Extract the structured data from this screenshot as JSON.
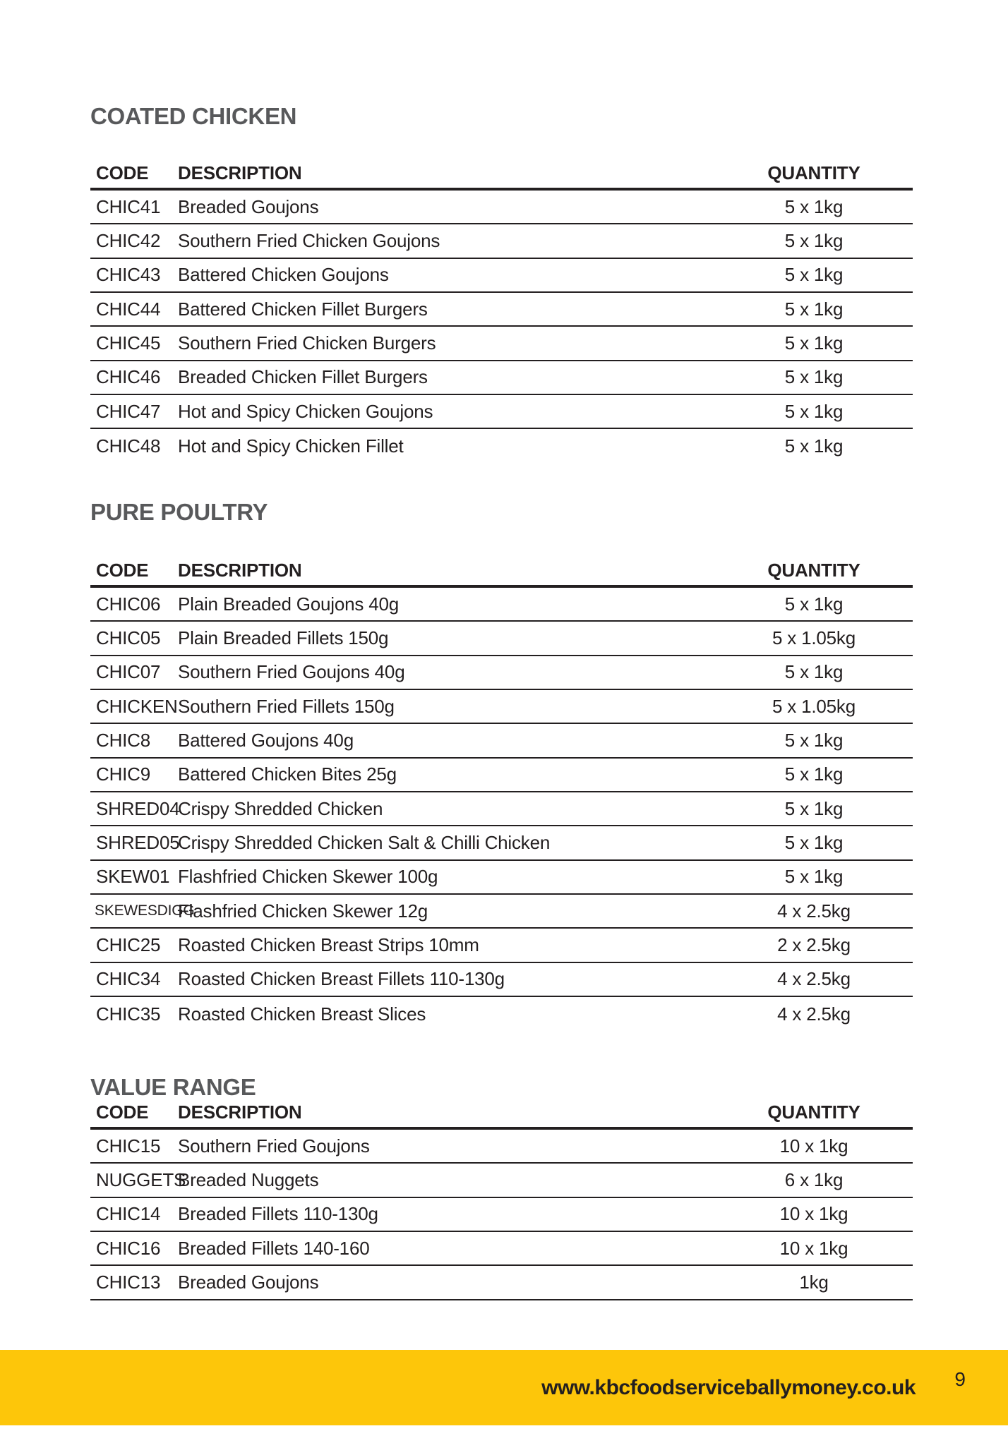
{
  "page": {
    "number": "9",
    "website": "www.kbcfoodserviceballymoney.co.uk",
    "accent_color": "#FDC60A",
    "heading_color": "#58595B",
    "text_color": "#231F20"
  },
  "sections": [
    {
      "title": "COATED CHICKEN",
      "headers": {
        "code": "CODE",
        "description": "DESCRIPTION",
        "quantity": "QUANTITY"
      },
      "last_row_border": false,
      "rows": [
        {
          "code": "CHIC41",
          "description": "Breaded Goujons",
          "quantity": "5 x 1kg"
        },
        {
          "code": "CHIC42",
          "description": "Southern Fried Chicken Goujons",
          "quantity": "5 x 1kg"
        },
        {
          "code": "CHIC43",
          "description": "Battered Chicken Goujons",
          "quantity": "5 x 1kg"
        },
        {
          "code": "CHIC44",
          "description": "Battered Chicken Fillet Burgers",
          "quantity": "5 x 1kg"
        },
        {
          "code": "CHIC45",
          "description": "Southern Fried Chicken Burgers",
          "quantity": "5 x 1kg"
        },
        {
          "code": "CHIC46",
          "description": "Breaded Chicken Fillet Burgers",
          "quantity": "5 x 1kg"
        },
        {
          "code": "CHIC47",
          "description": "Hot and Spicy Chicken Goujons",
          "quantity": "5 x 1kg"
        },
        {
          "code": "CHIC48",
          "description": "Hot and Spicy Chicken Fillet",
          "quantity": "5 x 1kg"
        }
      ]
    },
    {
      "title": "PURE POULTRY",
      "headers": {
        "code": "CODE",
        "description": "DESCRIPTION",
        "quantity": "QUANTITY"
      },
      "last_row_border": false,
      "rows": [
        {
          "code": "CHIC06",
          "description": "Plain Breaded Goujons 40g",
          "quantity": "5 x 1kg"
        },
        {
          "code": "CHIC05",
          "description": "Plain Breaded Fillets 150g",
          "quantity": "5 x 1.05kg"
        },
        {
          "code": "CHIC07",
          "description": "Southern Fried Goujons 40g",
          "quantity": "5 x 1kg"
        },
        {
          "code": "CHICKEN",
          "description": "Southern Fried Fillets 150g",
          "quantity": "5 x 1.05kg"
        },
        {
          "code": "CHIC8",
          "description": "Battered Goujons 40g",
          "quantity": "5 x 1kg"
        },
        {
          "code": "CHIC9",
          "description": "Battered Chicken Bites 25g",
          "quantity": "5 x 1kg"
        },
        {
          "code": "SHRED04",
          "description": "Crispy Shredded Chicken",
          "quantity": "5 x 1kg"
        },
        {
          "code": "SHRED05",
          "description": "Crispy Shredded Chicken Salt & Chilli Chicken",
          "quantity": "5 x 1kg"
        },
        {
          "code": "SKEW01",
          "description": "Flashfried Chicken Skewer 100g",
          "quantity": "5 x 1kg"
        },
        {
          "code": "SKEWESDIGG",
          "description": "Flashfried Chicken Skewer 12g",
          "quantity": "4 x 2.5kg"
        },
        {
          "code": "CHIC25",
          "description": "Roasted Chicken Breast Strips 10mm",
          "quantity": "2 x 2.5kg"
        },
        {
          "code": "CHIC34",
          "description": "Roasted Chicken Breast Fillets 110-130g",
          "quantity": "4 x 2.5kg"
        },
        {
          "code": "CHIC35",
          "description": "Roasted Chicken Breast Slices",
          "quantity": "4 x 2.5kg"
        }
      ]
    },
    {
      "title": "VALUE RANGE",
      "headers": {
        "code": "CODE",
        "description": "DESCRIPTION",
        "quantity": "QUANTITY"
      },
      "last_row_border": true,
      "rows": [
        {
          "code": "CHIC15",
          "description": "Southern Fried Goujons",
          "quantity": "10 x 1kg"
        },
        {
          "code": "NUGGETS",
          "description": "Breaded Nuggets",
          "quantity": "6 x 1kg"
        },
        {
          "code": "CHIC14",
          "description": "Breaded Fillets 110-130g",
          "quantity": "10 x 1kg"
        },
        {
          "code": "CHIC16",
          "description": "Breaded Fillets 140-160",
          "quantity": "10 x 1kg"
        },
        {
          "code": "CHIC13",
          "description": "Breaded Goujons",
          "quantity": "1kg"
        }
      ]
    }
  ]
}
